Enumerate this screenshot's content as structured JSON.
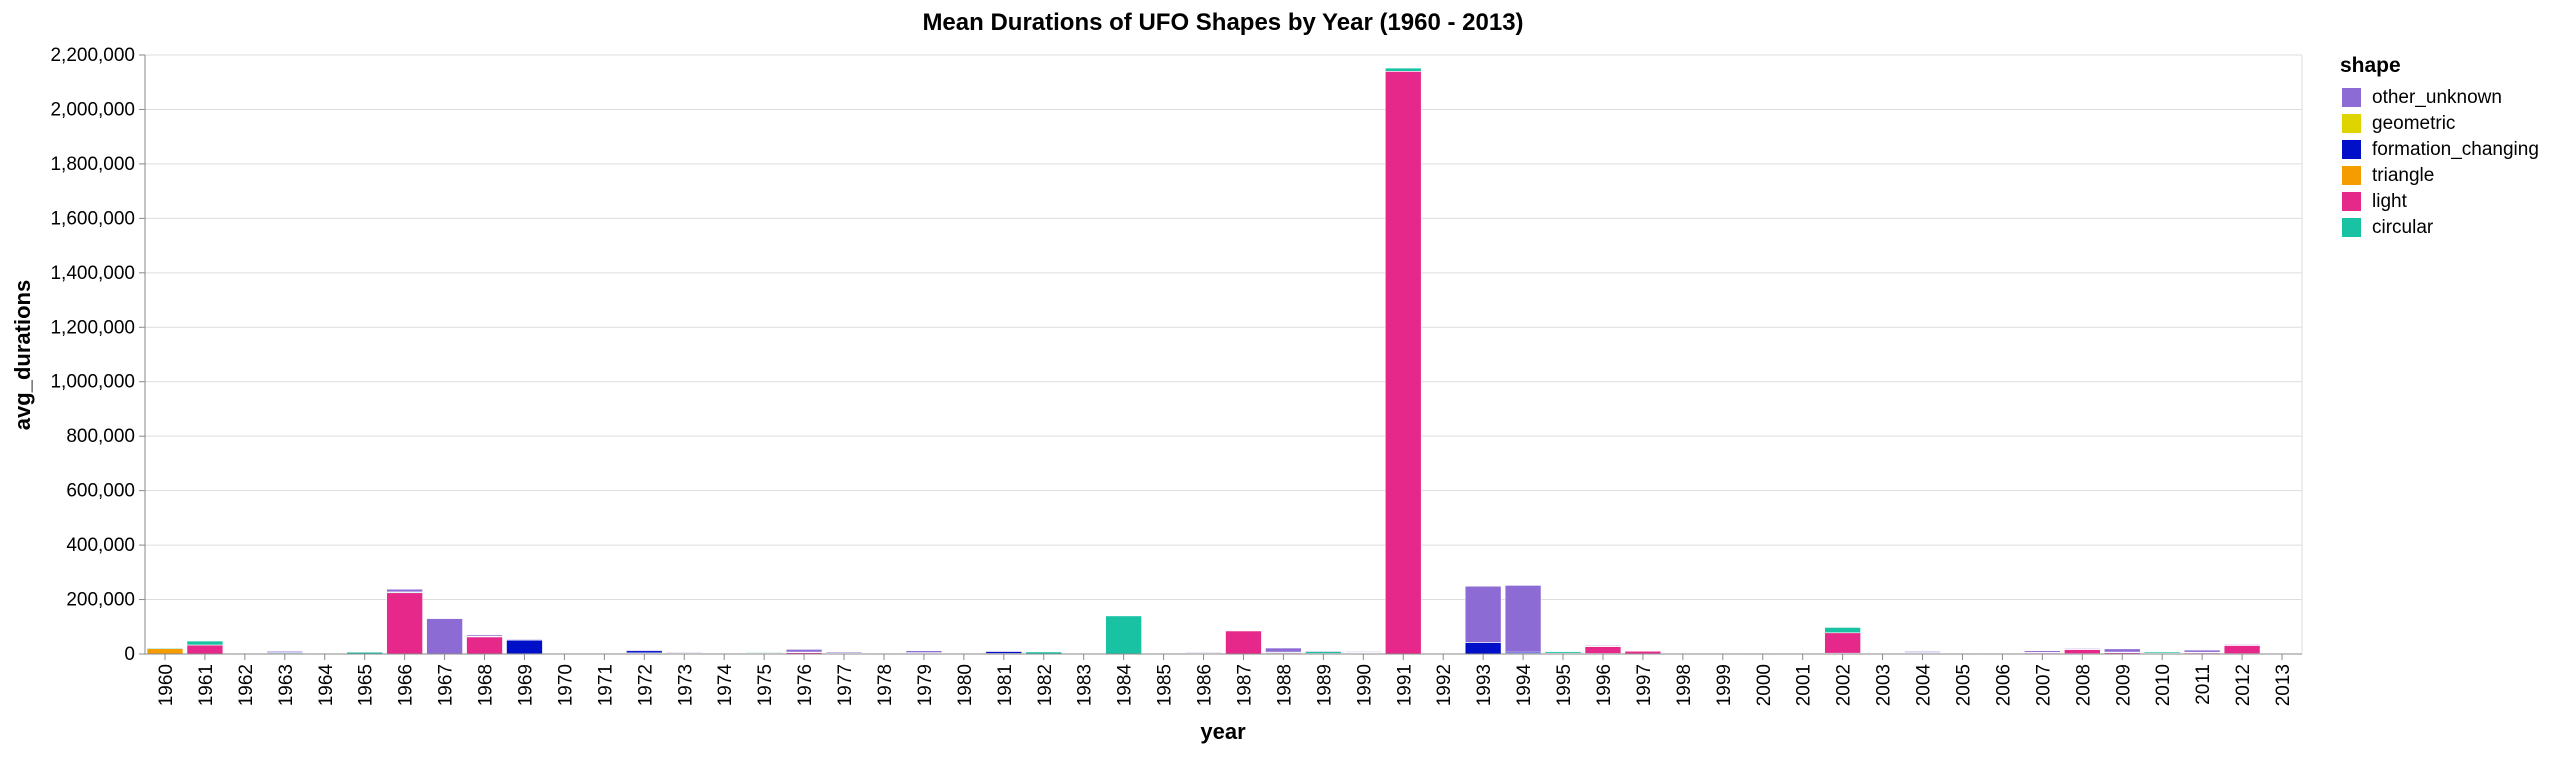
{
  "chart_data": {
    "type": "bar",
    "stacked": true,
    "title": "Mean Durations of UFO Shapes by Year (1960 - 2013)",
    "xlabel": "year",
    "ylabel": "avg_durations",
    "ylim": [
      0,
      2200000
    ],
    "yticks": [
      0,
      200000,
      400000,
      600000,
      800000,
      1000000,
      1200000,
      1400000,
      1600000,
      1800000,
      2000000,
      2200000
    ],
    "grid": true,
    "legend": {
      "title": "shape",
      "position": "right"
    },
    "categories": [
      "1960",
      "1961",
      "1962",
      "1963",
      "1964",
      "1965",
      "1966",
      "1967",
      "1968",
      "1969",
      "1970",
      "1971",
      "1972",
      "1973",
      "1974",
      "1975",
      "1976",
      "1977",
      "1978",
      "1979",
      "1980",
      "1981",
      "1982",
      "1983",
      "1984",
      "1985",
      "1986",
      "1987",
      "1988",
      "1989",
      "1990",
      "1991",
      "1992",
      "1993",
      "1994",
      "1995",
      "1996",
      "1997",
      "1998",
      "1999",
      "2000",
      "2001",
      "2002",
      "2003",
      "2004",
      "2005",
      "2006",
      "2007",
      "2008",
      "2009",
      "2010",
      "2011",
      "2012",
      "2013"
    ],
    "series": [
      {
        "name": "triangle",
        "color": "#f59c00",
        "values": [
          20000,
          0,
          2000,
          0,
          0,
          0,
          0,
          0,
          0,
          0,
          0,
          0,
          0,
          0,
          2000,
          3000,
          0,
          0,
          1000,
          0,
          1000,
          0,
          0,
          3000,
          0,
          3000,
          3000,
          0,
          1000,
          0,
          2000,
          0,
          2000,
          0,
          0,
          1000,
          2000,
          1000,
          1500,
          2000,
          1500,
          1500,
          3000,
          1000,
          1500,
          1500,
          1000,
          1000,
          1500,
          1000,
          1000,
          1500,
          1500,
          1000
        ]
      },
      {
        "name": "light",
        "color": "#e6288a",
        "values": [
          0,
          33000,
          0,
          2000,
          0,
          0,
          225000,
          0,
          63000,
          0,
          0,
          0,
          2000,
          2000,
          0,
          0,
          5000,
          2000,
          2000,
          3000,
          0,
          0,
          0,
          0,
          0,
          0,
          0,
          85000,
          3000,
          2000,
          2000,
          2140000,
          0,
          0,
          0,
          2000,
          25000,
          10000,
          2000,
          1000,
          1000,
          2000,
          75000,
          2000,
          2000,
          1000,
          2000,
          3000,
          15000,
          4000,
          2000,
          3000,
          30000,
          2000
        ]
      },
      {
        "name": "circular",
        "color": "#18c2a3",
        "values": [
          3000,
          15000,
          0,
          3000,
          2000,
          7000,
          3000,
          0,
          2000,
          1000,
          3000,
          1000,
          2000,
          2000,
          0,
          3000,
          2000,
          2000,
          2000,
          2000,
          1000,
          2000,
          8000,
          0,
          140000,
          0,
          1000,
          2000,
          3000,
          7000,
          2000,
          12000,
          0,
          0,
          2000,
          6000,
          2000,
          1000,
          1000,
          1000,
          1000,
          1000,
          20000,
          1000,
          2000,
          1000,
          2000,
          2000,
          2000,
          2000,
          5000,
          2000,
          2000,
          1000
        ]
      },
      {
        "name": "formation_changing",
        "color": "#0010c8",
        "values": [
          0,
          0,
          0,
          0,
          0,
          0,
          0,
          0,
          0,
          50000,
          0,
          0,
          8000,
          0,
          0,
          0,
          0,
          0,
          0,
          0,
          0,
          7000,
          0,
          0,
          0,
          0,
          0,
          0,
          0,
          0,
          0,
          0,
          0,
          42000,
          5000,
          0,
          0,
          0,
          0,
          0,
          0,
          0,
          0,
          0,
          0,
          0,
          0,
          0,
          0,
          0,
          0,
          0,
          0,
          0
        ]
      },
      {
        "name": "geometric",
        "color": "#e0d400",
        "values": [
          0,
          0,
          0,
          0,
          0,
          0,
          0,
          0,
          0,
          0,
          0,
          0,
          0,
          0,
          0,
          0,
          0,
          0,
          0,
          0,
          0,
          0,
          0,
          0,
          0,
          0,
          0,
          0,
          0,
          0,
          0,
          0,
          0,
          0,
          0,
          0,
          0,
          0,
          0,
          0,
          0,
          0,
          0,
          0,
          0,
          0,
          0,
          0,
          0,
          0,
          0,
          0,
          0,
          0
        ]
      },
      {
        "name": "other_unknown",
        "color": "#8c6cd4",
        "values": [
          0,
          2000,
          0,
          5000,
          0,
          2000,
          10000,
          130000,
          5000,
          3000,
          2000,
          2000,
          3000,
          3000,
          2000,
          2000,
          10000,
          4000,
          2000,
          7000,
          2000,
          3000,
          2000,
          2000,
          0,
          2000,
          3000,
          2000,
          15000,
          3000,
          3000,
          0,
          2000,
          207000,
          245000,
          2000,
          3000,
          2000,
          2000,
          2000,
          2000,
          2000,
          2000,
          2000,
          4000,
          2000,
          2000,
          6000,
          3000,
          12000,
          2000,
          8000,
          3000,
          2000
        ]
      }
    ],
    "legend_order": [
      "other_unknown",
      "geometric",
      "formation_changing",
      "triangle",
      "light",
      "circular"
    ]
  }
}
